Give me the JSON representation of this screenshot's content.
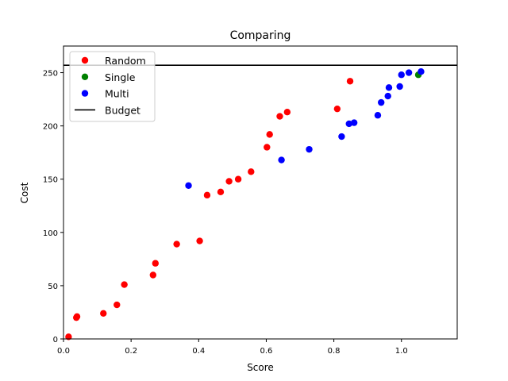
{
  "chart_data": {
    "type": "scatter",
    "title": "Comparing",
    "xlabel": "Score",
    "ylabel": "Cost",
    "xlim": [
      0,
      1.165
    ],
    "ylim": [
      0,
      275
    ],
    "x_ticks": [
      0.0,
      0.2,
      0.4,
      0.6,
      0.8,
      1.0
    ],
    "x_tick_labels": [
      "0.0",
      "0.2",
      "0.4",
      "0.6",
      "0.8",
      "1.0"
    ],
    "y_ticks": [
      0,
      50,
      100,
      150,
      200,
      250
    ],
    "y_tick_labels": [
      "0",
      "50",
      "100",
      "150",
      "200",
      "250"
    ],
    "grid": false,
    "legend_position": "top-left",
    "budget": {
      "name": "Budget",
      "y": 257,
      "color": "#000000"
    },
    "series": [
      {
        "name": "Random",
        "color": "#ff0000",
        "points": [
          [
            0.015,
            2
          ],
          [
            0.038,
            20
          ],
          [
            0.04,
            21
          ],
          [
            0.118,
            24
          ],
          [
            0.158,
            32
          ],
          [
            0.18,
            51
          ],
          [
            0.265,
            60
          ],
          [
            0.272,
            71
          ],
          [
            0.335,
            89
          ],
          [
            0.403,
            92
          ],
          [
            0.425,
            135
          ],
          [
            0.465,
            138
          ],
          [
            0.49,
            148
          ],
          [
            0.517,
            150
          ],
          [
            0.555,
            157
          ],
          [
            0.602,
            180
          ],
          [
            0.61,
            192
          ],
          [
            0.64,
            209
          ],
          [
            0.662,
            213
          ],
          [
            0.81,
            216
          ],
          [
            0.848,
            242
          ]
        ]
      },
      {
        "name": "Single",
        "color": "#008000",
        "points": [
          [
            1.05,
            248
          ]
        ]
      },
      {
        "name": "Multi",
        "color": "#0000ff",
        "points": [
          [
            0.37,
            144
          ],
          [
            0.645,
            168
          ],
          [
            0.727,
            178
          ],
          [
            0.823,
            190
          ],
          [
            0.845,
            202
          ],
          [
            0.86,
            203
          ],
          [
            0.93,
            210
          ],
          [
            0.94,
            222
          ],
          [
            0.96,
            228
          ],
          [
            0.963,
            236
          ],
          [
            0.995,
            237
          ],
          [
            1.0,
            248
          ],
          [
            1.022,
            250
          ],
          [
            1.058,
            251
          ]
        ]
      }
    ]
  }
}
